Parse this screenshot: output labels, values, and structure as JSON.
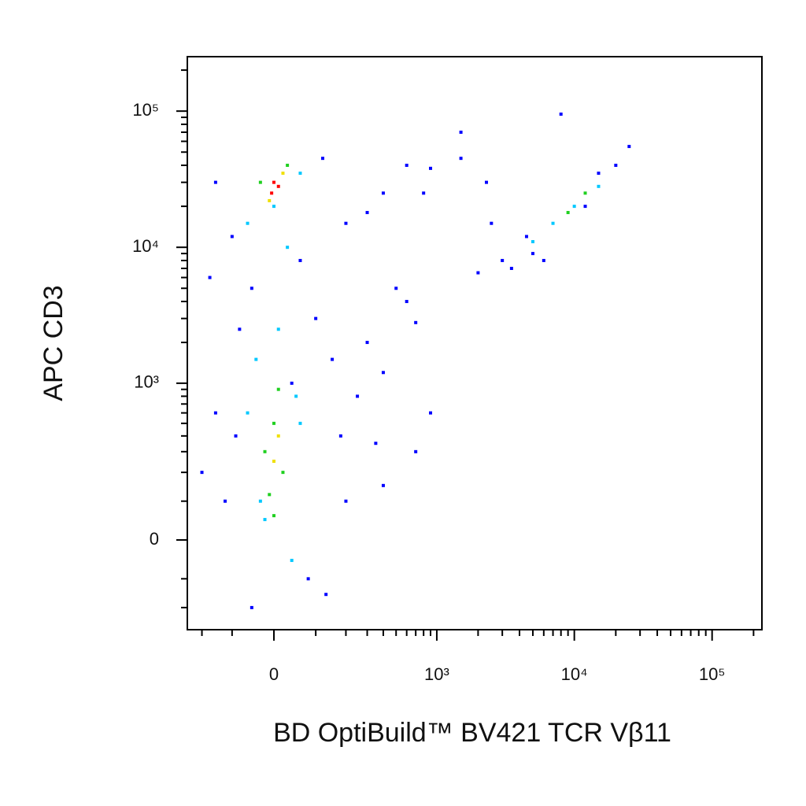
{
  "chart_data": {
    "type": "scatter",
    "x_label": "BD OptiBuild™  BV421 TCR Vβ11",
    "y_label": "APC CD3",
    "xscale": "biexponential",
    "yscale": "biexponential",
    "xlim": [
      -265,
      230000
    ],
    "ylim": [
      -308,
      251000
    ],
    "xticks": [
      0,
      {
        "value": 1000,
        "label": "10³"
      },
      {
        "value": 10000,
        "label": "10⁴"
      },
      {
        "value": 100000,
        "label": "10⁵"
      }
    ],
    "yticks": [
      0,
      {
        "value": 1000,
        "label": "10³"
      },
      {
        "value": 10000,
        "label": "10⁴"
      },
      {
        "value": 100000,
        "label": "10⁵"
      }
    ],
    "xminorticks": [
      -200,
      -100,
      100,
      200,
      300,
      400,
      500,
      600,
      700,
      800,
      900,
      2000,
      3000,
      4000,
      5000,
      6000,
      7000,
      8000,
      9000,
      20000,
      30000,
      40000,
      50000,
      60000,
      70000,
      80000,
      90000,
      200000
    ],
    "yminorticks": [
      -200,
      -100,
      100,
      200,
      300,
      400,
      500,
      600,
      700,
      800,
      900,
      2000,
      3000,
      4000,
      5000,
      6000,
      7000,
      8000,
      9000,
      20000,
      30000,
      40000,
      50000,
      60000,
      70000,
      80000,
      90000,
      200000
    ],
    "series": [
      {
        "color": "#0000ff",
        "x": [
          -150,
          120,
          200,
          -100,
          60,
          -50,
          100,
          300,
          -80,
          150,
          400,
          250,
          -150,
          180,
          350,
          -200,
          80,
          -50,
          200,
          600,
          900,
          1500,
          400,
          300,
          800,
          2500,
          3500,
          2000,
          5000,
          6000,
          4500,
          15000,
          25000,
          8000,
          1500,
          700,
          500,
          900,
          400,
          600,
          -120,
          130,
          40,
          -90,
          700,
          2300,
          12000,
          20000,
          3000,
          -170
        ],
        "y": [
          30000,
          45000,
          15000,
          12000,
          8000,
          5000,
          3000,
          2000,
          2500,
          1500,
          1200,
          800,
          600,
          400,
          350,
          200,
          -100,
          -200,
          100,
          40000,
          38000,
          45000,
          25000,
          18000,
          25000,
          15000,
          7000,
          6500,
          9000,
          8000,
          12000,
          35000,
          55000,
          95000,
          70000,
          2800,
          5000,
          600,
          150,
          4000,
          100,
          -150,
          1000,
          400,
          300,
          30000,
          20000,
          40000,
          8000,
          6000
        ]
      },
      {
        "color": "#00c8ff",
        "x": [
          0,
          60,
          -60,
          30,
          -40,
          50,
          -30,
          40,
          10,
          -20,
          7000,
          10000,
          15000,
          5000,
          60,
          -60
        ],
        "y": [
          20000,
          35000,
          15000,
          10000,
          1500,
          800,
          100,
          -50,
          2500,
          50,
          15000,
          20000,
          28000,
          11000,
          500,
          600
        ]
      },
      {
        "color": "#20d020",
        "x": [
          -20,
          20,
          0,
          10,
          -10,
          30,
          -30,
          9000,
          12000,
          0
        ],
        "y": [
          300,
          200,
          500,
          900,
          120,
          40000,
          30000,
          18000,
          25000,
          60
        ]
      },
      {
        "color": "#f0e000",
        "x": [
          0,
          10,
          20,
          -10
        ],
        "y": [
          250,
          400,
          35000,
          22000
        ]
      },
      {
        "color": "#ff0000",
        "x": [
          -5,
          10,
          0
        ],
        "y": [
          25000,
          28000,
          30000
        ]
      }
    ]
  }
}
